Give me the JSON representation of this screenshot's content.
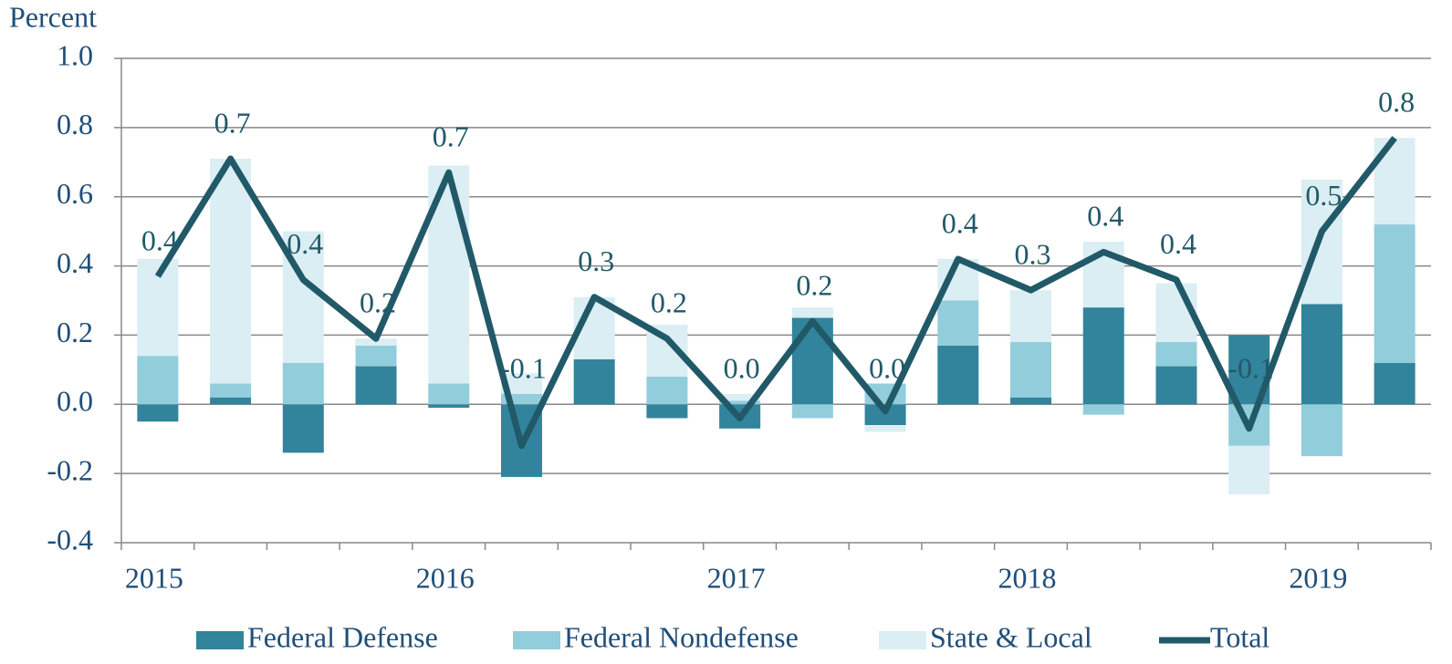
{
  "chart_data": {
    "type": "bar",
    "stacked": true,
    "y_label": "Percent",
    "categories": [
      "2015",
      null,
      null,
      null,
      "2016",
      null,
      null,
      null,
      "2017",
      null,
      null,
      null,
      "2018",
      null,
      null,
      null,
      "2019",
      null
    ],
    "series": [
      {
        "name": "Federal Defense",
        "color": "#31849b",
        "values": [
          -0.05,
          0.02,
          -0.14,
          0.11,
          -0.01,
          -0.21,
          0.13,
          -0.04,
          -0.07,
          0.25,
          -0.06,
          0.17,
          0.02,
          0.28,
          0.11,
          0.2,
          0.29,
          0.12
        ]
      },
      {
        "name": "Federal Nondefense",
        "color": "#92cddc",
        "values": [
          0.14,
          0.04,
          0.12,
          0.06,
          0.06,
          0.03,
          0.0,
          0.08,
          0.01,
          -0.04,
          0.06,
          0.13,
          0.16,
          -0.03,
          0.07,
          -0.12,
          -0.15,
          0.4
        ]
      },
      {
        "name": "State & Local",
        "color": "#daeef3",
        "values": [
          0.28,
          0.65,
          0.38,
          0.02,
          0.63,
          0.06,
          0.18,
          0.15,
          0.02,
          0.03,
          -0.02,
          0.12,
          0.15,
          0.19,
          0.17,
          -0.14,
          0.36,
          0.25
        ]
      },
      {
        "name": "Total",
        "type": "line",
        "color": "#215968",
        "values": [
          0.37,
          0.71,
          0.36,
          0.19,
          0.67,
          -0.12,
          0.31,
          0.19,
          -0.04,
          0.24,
          -0.02,
          0.42,
          0.33,
          0.44,
          0.36,
          -0.07,
          0.5,
          0.77
        ],
        "value_labels": [
          "0.4",
          "0.7",
          "0.4",
          "0.2",
          "0.7",
          "-0.1",
          "0.3",
          "0.2",
          "0.0",
          "0.2",
          "0.0",
          "0.4",
          "0.3",
          "0.4",
          "0.4",
          "-0.1",
          "0.5",
          "0.8"
        ]
      }
    ],
    "ylim": [
      -0.4,
      1.0
    ],
    "yticks": [
      -0.4,
      -0.2,
      {
        "value": 0,
        "label": "0.0"
      },
      0.2,
      0.4,
      0.6,
      0.8,
      {
        "value": 1.0,
        "label": "1.0"
      }
    ],
    "grid": true,
    "legend": "bottom"
  }
}
